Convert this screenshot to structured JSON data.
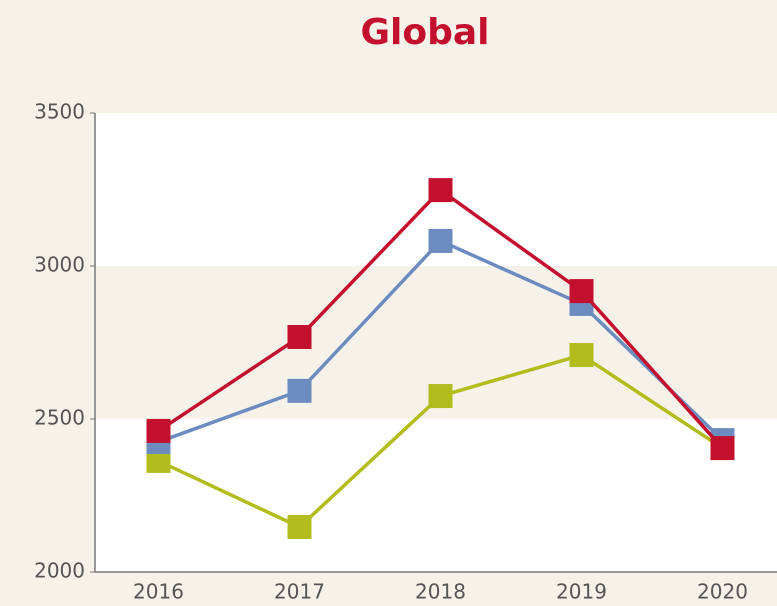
{
  "chart_data": {
    "type": "line",
    "title": "Global",
    "categories": [
      "2016",
      "2017",
      "2018",
      "2019",
      "2020"
    ],
    "series": [
      {
        "color": "#b2bc1c",
        "values": [
          2363,
          2147,
          2575,
          2709,
          2405
        ]
      },
      {
        "color": "#6c8cc0",
        "values": [
          2425,
          2592,
          3082,
          2876,
          2431
        ]
      },
      {
        "color": "#c3102f",
        "values": [
          2461,
          2768,
          3248,
          2918,
          2405
        ]
      }
    ],
    "ylim": [
      2000,
      3500
    ],
    "yticks": [
      2000,
      2500,
      3000,
      3500
    ],
    "grid": true
  }
}
